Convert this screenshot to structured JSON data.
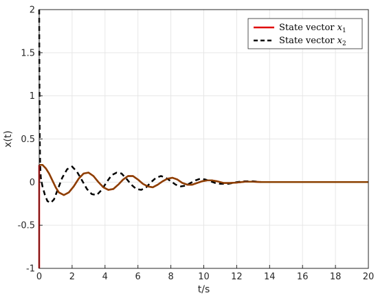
{
  "chart_data": {
    "type": "line",
    "title": "",
    "xlabel": "t/s",
    "ylabel": "x(t)",
    "xlim": [
      0,
      20
    ],
    "ylim": [
      -1,
      2
    ],
    "xticks": [
      0,
      2,
      4,
      6,
      8,
      10,
      12,
      14,
      16,
      18,
      20
    ],
    "yticks": [
      -1,
      -0.5,
      0,
      0.5,
      1,
      1.5,
      2
    ],
    "xtick_labels": [
      "0",
      "2",
      "4",
      "6",
      "8",
      "10",
      "12",
      "14",
      "16",
      "18",
      "20"
    ],
    "ytick_labels": [
      "-1",
      "-0.5",
      "0",
      "0.5",
      "1",
      "1.5",
      "2"
    ],
    "grid": true,
    "legend_position": "top-right",
    "series": [
      {
        "name": "State vector x1",
        "legend_text": "State vector ",
        "legend_var": "x",
        "legend_sub": "1",
        "color": "#e00000",
        "overlay_color": "#8b4000",
        "style": "solid",
        "x": [
          0,
          0.2,
          0.4,
          0.6,
          0.8,
          1.0,
          1.2,
          1.5,
          1.8,
          2.1,
          2.4,
          2.7,
          3.0,
          3.3,
          3.6,
          3.9,
          4.2,
          4.5,
          4.8,
          5.1,
          5.4,
          5.7,
          6.0,
          6.3,
          6.6,
          6.9,
          7.2,
          7.5,
          7.8,
          8.1,
          8.4,
          8.7,
          9.0,
          9.3,
          9.6,
          9.9,
          10.2,
          10.5,
          10.8,
          11.2,
          11.6,
          12.0,
          12.5,
          13.0,
          13.5,
          14.0,
          15.0,
          16.0,
          17.0,
          18.0,
          19.0,
          20.0
        ],
        "y": [
          0.2,
          0.2,
          0.16,
          0.1,
          0.02,
          -0.06,
          -0.12,
          -0.15,
          -0.12,
          -0.05,
          0.04,
          0.1,
          0.11,
          0.07,
          0.0,
          -0.06,
          -0.09,
          -0.08,
          -0.03,
          0.03,
          0.07,
          0.07,
          0.03,
          -0.02,
          -0.05,
          -0.06,
          -0.03,
          0.01,
          0.04,
          0.05,
          0.03,
          -0.01,
          -0.03,
          -0.03,
          -0.01,
          0.01,
          0.02,
          0.02,
          0.01,
          -0.01,
          -0.01,
          -0.005,
          0.005,
          0.005,
          0.0,
          0.0,
          0.0,
          0.0,
          0.0,
          0.0,
          0.0,
          0.0
        ]
      },
      {
        "name": "State vector x2",
        "legend_text": "State vector ",
        "legend_var": "x",
        "legend_sub": "2",
        "color": "#000000",
        "style": "dashed",
        "x": [
          0,
          0.01,
          0.03,
          0.06,
          0.1,
          0.2,
          0.35,
          0.5,
          0.7,
          0.9,
          1.1,
          1.4,
          1.7,
          2.0,
          2.3,
          2.6,
          2.9,
          3.2,
          3.5,
          3.8,
          4.1,
          4.4,
          4.7,
          5.0,
          5.3,
          5.6,
          5.9,
          6.2,
          6.5,
          6.8,
          7.1,
          7.4,
          7.7,
          8.0,
          8.3,
          8.6,
          8.9,
          9.2,
          9.5,
          9.8,
          10.1,
          10.4,
          10.7,
          11.0,
          11.5,
          12.0,
          12.5,
          13.0,
          13.5,
          14.0,
          15.0,
          16.0,
          17.0,
          18.0,
          19.0,
          20.0
        ],
        "y": [
          2.0,
          1.5,
          0.6,
          0.2,
          0.05,
          -0.05,
          -0.15,
          -0.22,
          -0.24,
          -0.2,
          -0.1,
          0.05,
          0.15,
          0.18,
          0.12,
          0.02,
          -0.08,
          -0.14,
          -0.15,
          -0.09,
          0.0,
          0.08,
          0.11,
          0.1,
          0.04,
          -0.03,
          -0.08,
          -0.09,
          -0.06,
          0.0,
          0.05,
          0.07,
          0.05,
          0.01,
          -0.03,
          -0.05,
          -0.04,
          -0.01,
          0.02,
          0.04,
          0.03,
          0.01,
          -0.01,
          -0.02,
          -0.02,
          0.0,
          0.01,
          0.01,
          0.0,
          0.0,
          0.0,
          0.0,
          0.0,
          0.0,
          0.0,
          0.0
        ]
      }
    ]
  }
}
